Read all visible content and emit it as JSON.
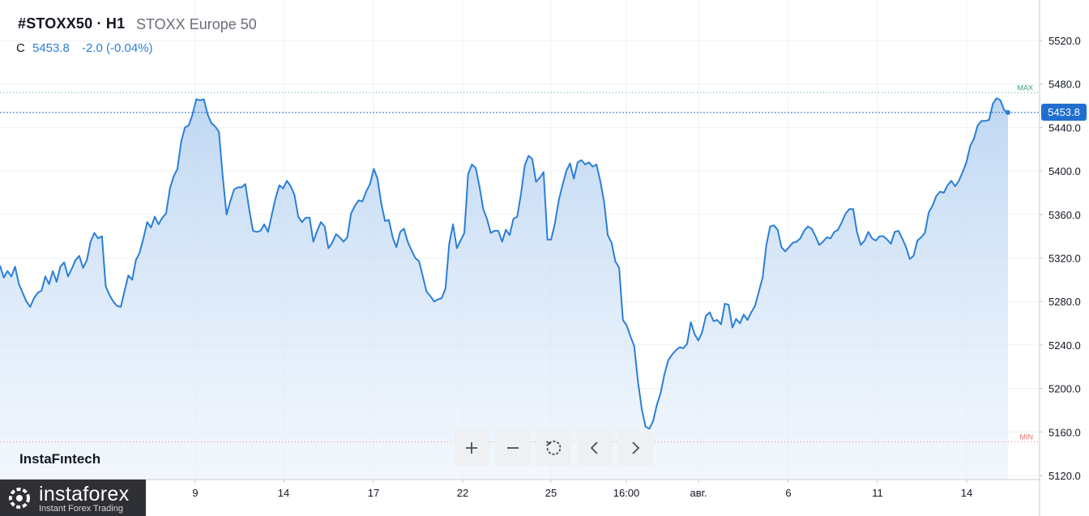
{
  "header": {
    "symbol": "#STOXX50 · H1",
    "name": "STOXX Europe 50",
    "close_label": "C",
    "close_value": "5453.8",
    "change": "-2.0 (-0.04%)"
  },
  "brand_text": "InstaFıntech",
  "logo": {
    "main": "instaforex",
    "sub": "Instant Forex Trading"
  },
  "markers": {
    "max_label": "MAX",
    "min_label": "MIN",
    "current_price": "5453.8"
  },
  "controls": [
    {
      "name": "zoom-in-button",
      "icon": "plus-icon"
    },
    {
      "name": "zoom-out-button",
      "icon": "minus-icon"
    },
    {
      "name": "reset-button",
      "icon": "reset-icon"
    },
    {
      "name": "scroll-left-button",
      "icon": "chevron-left-icon"
    },
    {
      "name": "scroll-right-button",
      "icon": "chevron-right-icon"
    }
  ],
  "colors": {
    "line": "#2a7fd8",
    "fill_top": "#c9dcf4",
    "max": "#3aa76d",
    "min": "#e0726f",
    "price_tag": "#1f6fd0"
  },
  "chart_data": {
    "type": "area",
    "y_ticks": [
      "5520.0",
      "5480.0",
      "5440.0",
      "5400.0",
      "5360.0",
      "5320.0",
      "5280.0",
      "5240.0",
      "5200.0",
      "5160.0",
      "5120.0"
    ],
    "x_ticks": [
      "9",
      "14",
      "17",
      "22",
      "25",
      "16:00",
      "авг.",
      "6",
      "11",
      "14"
    ],
    "ylim": [
      5120,
      5520
    ],
    "grid": true,
    "max_value": 5472,
    "min_value": 5151,
    "last_value": 5453.8,
    "series": [
      {
        "values": [
          5313,
          5302,
          5308,
          5303,
          5312,
          5296,
          5288,
          5280,
          5275,
          5283,
          5288,
          5290,
          5303,
          5296,
          5308,
          5298,
          5312,
          5316,
          5303,
          5310,
          5318,
          5322,
          5311,
          5318,
          5335,
          5343,
          5338,
          5340,
          5294,
          5286,
          5280,
          5276,
          5275,
          5290,
          5304,
          5300,
          5318,
          5325,
          5338,
          5353,
          5348,
          5358,
          5351,
          5357,
          5361,
          5384,
          5395,
          5402,
          5427,
          5440,
          5442,
          5452,
          5466,
          5465,
          5466,
          5452,
          5444,
          5441,
          5436,
          5395,
          5360,
          5372,
          5383,
          5385,
          5385,
          5388,
          5365,
          5345,
          5344,
          5345,
          5351,
          5344,
          5360,
          5375,
          5387,
          5384,
          5391,
          5386,
          5378,
          5358,
          5353,
          5357,
          5357,
          5335,
          5345,
          5353,
          5349,
          5329,
          5334,
          5342,
          5339,
          5335,
          5339,
          5361,
          5368,
          5373,
          5372,
          5381,
          5388,
          5402,
          5393,
          5370,
          5354,
          5355,
          5339,
          5330,
          5344,
          5347,
          5335,
          5327,
          5320,
          5317,
          5303,
          5289,
          5285,
          5280,
          5282,
          5283,
          5292,
          5333,
          5351,
          5329,
          5336,
          5343,
          5397,
          5406,
          5403,
          5386,
          5365,
          5356,
          5343,
          5345,
          5345,
          5335,
          5346,
          5341,
          5356,
          5358,
          5379,
          5405,
          5414,
          5411,
          5390,
          5394,
          5399,
          5337,
          5337,
          5352,
          5373,
          5387,
          5400,
          5407,
          5393,
          5408,
          5410,
          5406,
          5408,
          5404,
          5406,
          5391,
          5372,
          5341,
          5334,
          5317,
          5311,
          5263,
          5258,
          5248,
          5239,
          5206,
          5181,
          5165,
          5163,
          5170,
          5185,
          5196,
          5213,
          5226,
          5231,
          5235,
          5238,
          5237,
          5241,
          5261,
          5250,
          5244,
          5252,
          5267,
          5270,
          5262,
          5263,
          5259,
          5278,
          5277,
          5256,
          5264,
          5260,
          5268,
          5263,
          5270,
          5276,
          5289,
          5302,
          5332,
          5349,
          5350,
          5346,
          5330,
          5326,
          5330,
          5334,
          5335,
          5338,
          5345,
          5349,
          5347,
          5340,
          5332,
          5335,
          5339,
          5338,
          5344,
          5346,
          5353,
          5361,
          5365,
          5365,
          5344,
          5332,
          5336,
          5344,
          5338,
          5336,
          5340,
          5340,
          5337,
          5333,
          5344,
          5345,
          5338,
          5330,
          5319,
          5322,
          5336,
          5339,
          5343,
          5362,
          5368,
          5377,
          5381,
          5380,
          5387,
          5391,
          5386,
          5391,
          5399,
          5408,
          5423,
          5430,
          5442,
          5446,
          5446,
          5447,
          5462,
          5467,
          5465,
          5456,
          5453.8
        ]
      }
    ]
  }
}
